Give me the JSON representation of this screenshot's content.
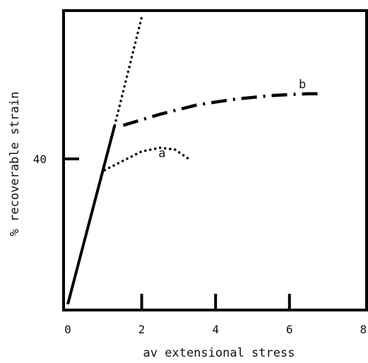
{
  "chart_data": {
    "type": "line",
    "xlabel": "av extensional stress",
    "ylabel": "% recoverable strain",
    "xlim": [
      0,
      8
    ],
    "ylim": [
      0,
      80
    ],
    "x_ticks": [
      {
        "value": 0,
        "label": "0"
      },
      {
        "value": 2,
        "label": "2"
      },
      {
        "value": 4,
        "label": "4"
      },
      {
        "value": 6,
        "label": "6"
      },
      {
        "value": 8,
        "label": "8"
      }
    ],
    "y_ticks": [
      {
        "value": 40,
        "label": "40"
      }
    ],
    "grid": false,
    "legend": "none",
    "series": [
      {
        "style": "solid",
        "x": [
          0.0,
          1.27
        ],
        "y": [
          1.0,
          49.0
        ]
      },
      {
        "style": "dotted",
        "x": [
          1.27,
          2.0
        ],
        "y": [
          49.0,
          78.0
        ]
      },
      {
        "label": "b",
        "style": "dash-dot",
        "x": [
          1.5,
          2.5,
          3.5,
          4.5,
          5.5,
          6.5,
          6.8
        ],
        "y": [
          49.0,
          52.0,
          54.5,
          56.0,
          57.0,
          57.5,
          57.5
        ]
      },
      {
        "label": "a",
        "style": "dotted",
        "x": [
          1.0,
          1.5,
          2.0,
          2.5,
          2.9,
          3.2,
          3.35
        ],
        "y": [
          37.0,
          39.5,
          42.0,
          43.0,
          42.5,
          40.5,
          39.5
        ]
      }
    ],
    "curve_labels": [
      {
        "text": "b",
        "x": 6.35,
        "y": 59.0
      },
      {
        "text": "a",
        "x": 2.55,
        "y": 40.5
      }
    ]
  }
}
